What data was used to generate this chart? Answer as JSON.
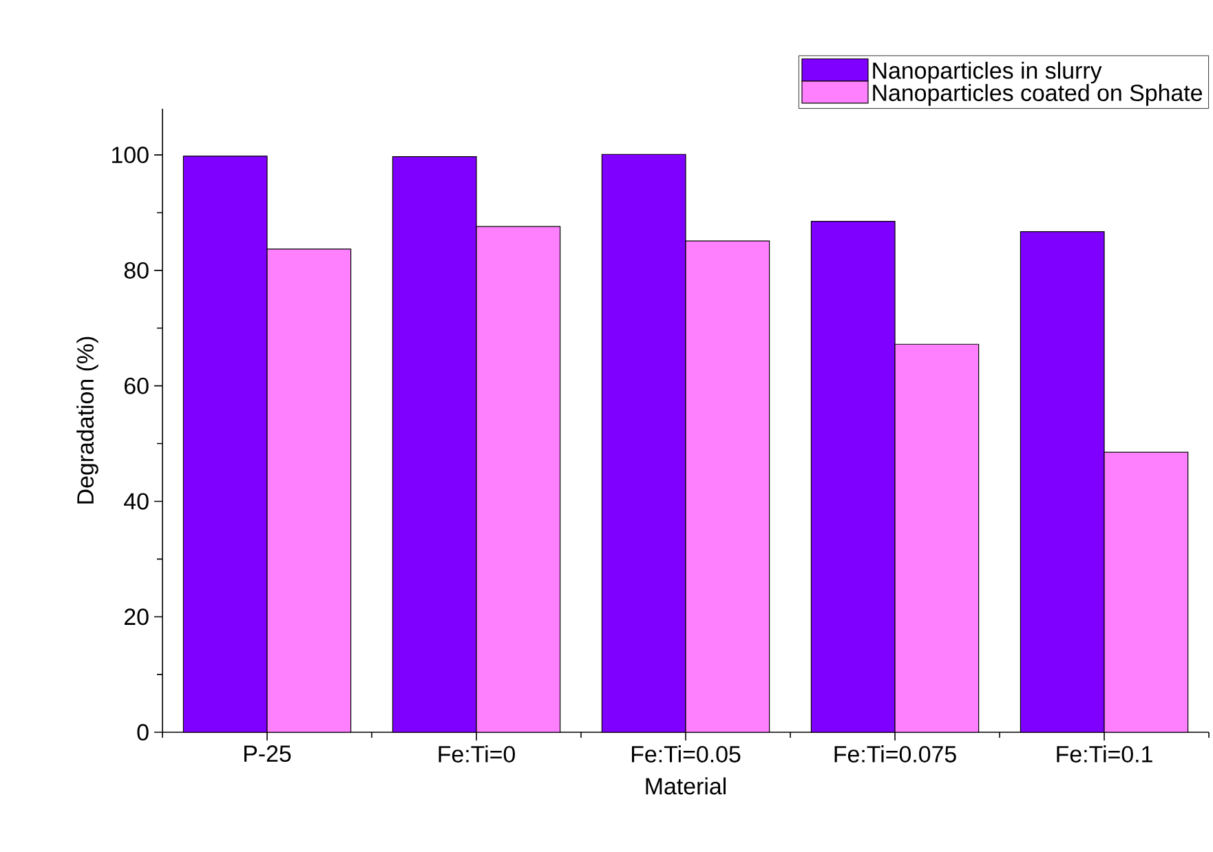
{
  "chart_data": {
    "type": "bar",
    "xlabel": "Material",
    "ylabel": "Degradation (%)",
    "categories": [
      "P-25",
      "Fe:Ti=0",
      "Fe:Ti=0.05",
      "Fe:Ti=0.075",
      "Fe:Ti=0.1"
    ],
    "series": [
      {
        "name": "Nanoparticles in slurry",
        "color": "#8000ff",
        "values": [
          99.8,
          99.7,
          100.1,
          88.5,
          86.7
        ]
      },
      {
        "name": "Nanoparticles coated on Sphate",
        "color": "#ff80ff",
        "values": [
          83.7,
          87.6,
          85.1,
          67.2,
          48.5
        ]
      }
    ],
    "ylim": [
      0,
      108
    ],
    "yticks": [
      0,
      20,
      40,
      60,
      80,
      100
    ],
    "grid": false,
    "legend": "top right"
  }
}
